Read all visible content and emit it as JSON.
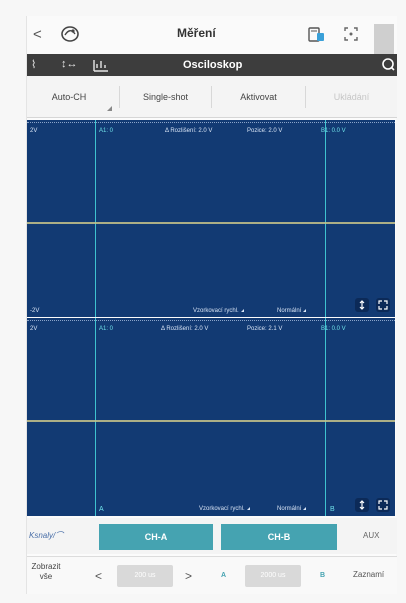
{
  "header": {
    "back_label": "<",
    "title": "Měření",
    "expand_label": "[•]"
  },
  "subheader": {
    "left_icon_1": "⌇",
    "left_icon_2": "↕↔",
    "title": "Osciloskop"
  },
  "modes": [
    {
      "label": "Auto-CH"
    },
    {
      "label": "Single-shot"
    },
    {
      "label": "Aktivovat"
    },
    {
      "label": "Ukládání"
    }
  ],
  "scope_a": {
    "left_top": "2V",
    "cursor_a": "A1: 0",
    "info_1": "Δ Rozlišení: 2.0 V",
    "info_2": "Pozice: 2.0 V",
    "cursor_b": "B1: 0.0 V",
    "left_bottom": "-2V",
    "rate_label": "Vzorkovací rychl.",
    "mode_label": "Normální"
  },
  "scope_b": {
    "left_top": "2V",
    "cursor_a": "A1: 0",
    "info_1": "Δ Rozlišení: 2.0 V",
    "info_2": "Pozice: 2.1 V",
    "cursor_b": "B1: 0.0 V",
    "marker_a": "A",
    "marker_b": "B",
    "rate_label": "Vzorkovací rychl.",
    "mode_label": "Normální"
  },
  "channels": {
    "mini_label": "Ksnaly/⌒",
    "ch_a": "CH-A",
    "ch_b": "CH-B",
    "auto": "AUX"
  },
  "bottom": {
    "show_label": "Zobrazit\nvše",
    "prev": "<",
    "time_value": "200 us",
    "next": ">",
    "a_label": "A",
    "volt_value": "2000 us",
    "b_label": "B",
    "record_label": "Zaznamí"
  },
  "icons": [
    "chevron-left-icon",
    "app-logo-icon",
    "device-icon",
    "expand-icon",
    "refresh-icon",
    "zoom-icon",
    "fullscreen-icon"
  ],
  "colors": {
    "scope_bg": "#123a73",
    "cursor": "#3ec2cf",
    "trace": "#c8c48a",
    "channel_button": "#45a3b1",
    "subheader_bg": "#3d3d3d"
  }
}
